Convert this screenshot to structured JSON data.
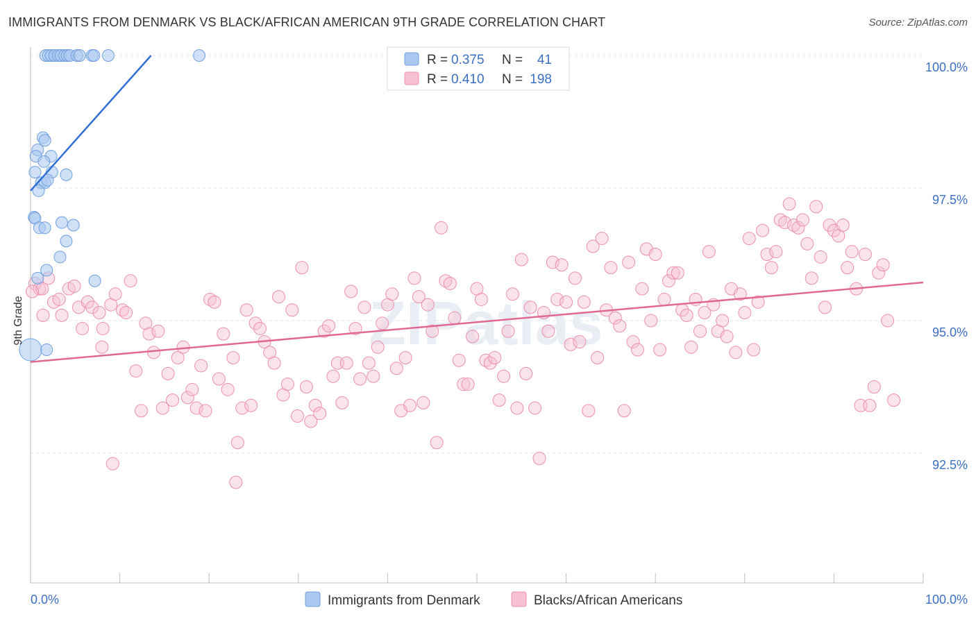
{
  "title": "IMMIGRANTS FROM DENMARK VS BLACK/AFRICAN AMERICAN 9TH GRADE CORRELATION CHART",
  "source": "Source: ZipAtlas.com",
  "watermark": "ZIPatlas",
  "colors": {
    "series1_fill": "#aac8f0",
    "series1_stroke": "#6f9fe0",
    "series1_line": "#2f6fd6",
    "series2_fill": "#f7c1d2",
    "series2_stroke": "#ec8fae",
    "series2_line": "#e0698f",
    "tick_label": "#3b6fc4",
    "grid": "#e6e6e6"
  },
  "legend": {
    "r_label": "R =",
    "n_label": "N =",
    "rows": [
      {
        "r": "0.375",
        "n": "41"
      },
      {
        "r": "0.410",
        "n": "198"
      }
    ]
  },
  "chart_data": {
    "type": "scatter",
    "title": "IMMIGRANTS FROM DENMARK VS BLACK/AFRICAN AMERICAN 9TH GRADE CORRELATION CHART",
    "xlabel": "",
    "ylabel": "9th Grade",
    "xlim": [
      0,
      100
    ],
    "ylim": [
      90.0,
      100.2
    ],
    "x_tick_labels": [
      "0.0%",
      "100.0%"
    ],
    "y_ticks": [
      92.5,
      95.0,
      97.5,
      100.0
    ],
    "y_tick_labels": [
      "92.5%",
      "95.0%",
      "97.5%",
      "100.0%"
    ],
    "grid": true,
    "legend_position": "top-center",
    "series": [
      {
        "name": "Immigrants from Denmark",
        "r": 0.375,
        "n": 41,
        "trend": {
          "x": [
            0.0,
            13.5
          ],
          "y": [
            97.45,
            100.0
          ]
        },
        "points": [
          [
            1.7,
            100.0
          ],
          [
            2.0,
            100.0
          ],
          [
            2.3,
            100.0
          ],
          [
            2.7,
            100.0
          ],
          [
            3.1,
            100.0
          ],
          [
            3.4,
            100.0
          ],
          [
            3.8,
            100.0
          ],
          [
            4.1,
            100.0
          ],
          [
            4.4,
            100.0
          ],
          [
            5.2,
            100.0
          ],
          [
            5.5,
            100.0
          ],
          [
            6.9,
            100.0
          ],
          [
            7.1,
            100.0
          ],
          [
            8.7,
            100.0
          ],
          [
            18.9,
            100.0
          ],
          [
            1.4,
            98.45
          ],
          [
            1.6,
            98.4
          ],
          [
            0.8,
            98.22
          ],
          [
            0.6,
            98.1
          ],
          [
            2.3,
            98.1
          ],
          [
            1.5,
            98.0
          ],
          [
            0.5,
            97.8
          ],
          [
            2.4,
            97.8
          ],
          [
            4.0,
            97.75
          ],
          [
            1.2,
            97.6
          ],
          [
            1.6,
            97.6
          ],
          [
            1.9,
            97.65
          ],
          [
            0.9,
            97.45
          ],
          [
            0.4,
            96.95
          ],
          [
            0.5,
            96.93
          ],
          [
            3.5,
            96.85
          ],
          [
            4.8,
            96.8
          ],
          [
            1.0,
            96.75
          ],
          [
            1.6,
            96.75
          ],
          [
            4.0,
            96.5
          ],
          [
            3.3,
            96.2
          ],
          [
            1.8,
            95.95
          ],
          [
            0.8,
            95.8
          ],
          [
            7.2,
            95.75
          ],
          [
            0.0,
            94.45
          ],
          [
            1.8,
            94.45
          ]
        ]
      },
      {
        "name": "Blacks/African Americans",
        "r": 0.41,
        "n": 198,
        "trend": {
          "x": [
            0.0,
            100.0
          ],
          "y": [
            94.22,
            95.72
          ]
        },
        "points": [
          [
            0.5,
            95.7
          ],
          [
            1.0,
            95.6
          ],
          [
            1.3,
            95.6
          ],
          [
            2.0,
            95.8
          ],
          [
            2.6,
            95.35
          ],
          [
            3.2,
            95.4
          ],
          [
            3.5,
            95.1
          ],
          [
            4.3,
            95.6
          ],
          [
            4.9,
            95.65
          ],
          [
            5.4,
            95.25
          ],
          [
            5.8,
            94.85
          ],
          [
            6.4,
            95.35
          ],
          [
            6.9,
            95.25
          ],
          [
            7.7,
            95.15
          ],
          [
            8.1,
            94.85
          ],
          [
            9.0,
            95.3
          ],
          [
            8.0,
            94.5
          ],
          [
            9.5,
            95.5
          ],
          [
            10.3,
            95.2
          ],
          [
            10.7,
            95.15
          ],
          [
            11.2,
            95.75
          ],
          [
            11.8,
            94.05
          ],
          [
            12.4,
            93.3
          ],
          [
            12.9,
            94.95
          ],
          [
            13.3,
            94.75
          ],
          [
            13.8,
            94.4
          ],
          [
            14.3,
            94.8
          ],
          [
            14.8,
            93.35
          ],
          [
            15.4,
            94.0
          ],
          [
            15.9,
            93.5
          ],
          [
            16.5,
            94.3
          ],
          [
            17.1,
            94.5
          ],
          [
            17.6,
            93.55
          ],
          [
            18.1,
            93.7
          ],
          [
            18.6,
            93.35
          ],
          [
            19.1,
            94.15
          ],
          [
            19.6,
            93.3
          ],
          [
            20.1,
            95.4
          ],
          [
            20.6,
            95.35
          ],
          [
            21.1,
            93.9
          ],
          [
            21.6,
            94.75
          ],
          [
            22.1,
            93.7
          ],
          [
            22.7,
            94.3
          ],
          [
            23.2,
            92.7
          ],
          [
            23.7,
            93.35
          ],
          [
            24.2,
            95.2
          ],
          [
            24.7,
            93.4
          ],
          [
            25.2,
            94.95
          ],
          [
            25.7,
            94.85
          ],
          [
            26.2,
            94.6
          ],
          [
            26.8,
            94.4
          ],
          [
            27.3,
            94.2
          ],
          [
            27.8,
            95.45
          ],
          [
            28.3,
            93.6
          ],
          [
            28.8,
            93.8
          ],
          [
            29.3,
            95.2
          ],
          [
            29.9,
            93.2
          ],
          [
            30.4,
            96.0
          ],
          [
            30.9,
            93.75
          ],
          [
            31.4,
            93.1
          ],
          [
            31.9,
            93.4
          ],
          [
            32.4,
            93.25
          ],
          [
            32.9,
            94.8
          ],
          [
            33.4,
            94.9
          ],
          [
            33.9,
            93.95
          ],
          [
            34.4,
            94.2
          ],
          [
            34.9,
            93.45
          ],
          [
            35.4,
            94.2
          ],
          [
            35.9,
            95.55
          ],
          [
            36.4,
            94.85
          ],
          [
            36.9,
            93.9
          ],
          [
            37.4,
            95.25
          ],
          [
            37.9,
            94.2
          ],
          [
            38.4,
            93.95
          ],
          [
            38.9,
            94.5
          ],
          [
            39.4,
            94.95
          ],
          [
            40.0,
            95.3
          ],
          [
            40.5,
            95.5
          ],
          [
            41.0,
            94.1
          ],
          [
            41.5,
            93.3
          ],
          [
            42.0,
            94.3
          ],
          [
            42.5,
            93.4
          ],
          [
            43.0,
            95.8
          ],
          [
            43.5,
            95.45
          ],
          [
            44.0,
            93.45
          ],
          [
            44.5,
            95.3
          ],
          [
            45.0,
            94.8
          ],
          [
            45.5,
            92.7
          ],
          [
            46.0,
            96.75
          ],
          [
            46.5,
            95.75
          ],
          [
            47.0,
            95.7
          ],
          [
            47.5,
            95.05
          ],
          [
            48.0,
            94.25
          ],
          [
            48.5,
            93.8
          ],
          [
            49.0,
            93.8
          ],
          [
            49.5,
            94.7
          ],
          [
            50.0,
            95.6
          ],
          [
            50.5,
            95.4
          ],
          [
            51.0,
            94.25
          ],
          [
            51.5,
            94.2
          ],
          [
            52.0,
            94.3
          ],
          [
            52.5,
            93.5
          ],
          [
            53.0,
            93.95
          ],
          [
            53.5,
            94.8
          ],
          [
            54.0,
            95.5
          ],
          [
            54.5,
            93.35
          ],
          [
            55.0,
            96.15
          ],
          [
            55.5,
            94.0
          ],
          [
            56.0,
            95.25
          ],
          [
            56.5,
            93.35
          ],
          [
            57.0,
            92.4
          ],
          [
            57.5,
            95.15
          ],
          [
            58.0,
            94.8
          ],
          [
            58.5,
            96.1
          ],
          [
            59.0,
            95.4
          ],
          [
            59.5,
            96.05
          ],
          [
            60.0,
            95.35
          ],
          [
            60.5,
            94.55
          ],
          [
            61.0,
            95.8
          ],
          [
            61.5,
            94.6
          ],
          [
            62.0,
            95.35
          ],
          [
            62.5,
            93.3
          ],
          [
            63.0,
            96.4
          ],
          [
            63.5,
            94.3
          ],
          [
            64.0,
            96.55
          ],
          [
            64.5,
            95.2
          ],
          [
            65.0,
            96.0
          ],
          [
            65.5,
            95.05
          ],
          [
            66.0,
            94.9
          ],
          [
            66.5,
            93.3
          ],
          [
            67.0,
            96.1
          ],
          [
            67.5,
            94.6
          ],
          [
            68.0,
            94.45
          ],
          [
            68.5,
            95.6
          ],
          [
            69.0,
            96.35
          ],
          [
            69.5,
            95.0
          ],
          [
            70.0,
            96.25
          ],
          [
            70.5,
            94.45
          ],
          [
            71.0,
            95.4
          ],
          [
            71.5,
            95.75
          ],
          [
            72.0,
            95.9
          ],
          [
            72.5,
            95.9
          ],
          [
            73.0,
            95.2
          ],
          [
            73.5,
            95.1
          ],
          [
            74.0,
            94.5
          ],
          [
            74.5,
            95.4
          ],
          [
            75.0,
            94.8
          ],
          [
            75.5,
            95.15
          ],
          [
            76.0,
            96.3
          ],
          [
            76.5,
            95.3
          ],
          [
            77.0,
            94.8
          ],
          [
            77.5,
            95.0
          ],
          [
            78.0,
            94.7
          ],
          [
            78.5,
            95.6
          ],
          [
            79.0,
            94.4
          ],
          [
            79.5,
            95.5
          ],
          [
            80.0,
            95.15
          ],
          [
            80.5,
            96.55
          ],
          [
            81.0,
            94.45
          ],
          [
            81.5,
            95.35
          ],
          [
            82.0,
            96.7
          ],
          [
            82.5,
            96.25
          ],
          [
            83.0,
            96.0
          ],
          [
            83.5,
            96.3
          ],
          [
            84.0,
            96.9
          ],
          [
            84.5,
            96.85
          ],
          [
            85.0,
            97.2
          ],
          [
            85.5,
            96.8
          ],
          [
            86.0,
            96.75
          ],
          [
            86.5,
            96.9
          ],
          [
            87.0,
            96.45
          ],
          [
            87.5,
            95.8
          ],
          [
            88.0,
            97.15
          ],
          [
            88.5,
            96.2
          ],
          [
            89.0,
            95.25
          ],
          [
            89.5,
            96.8
          ],
          [
            90.0,
            96.7
          ],
          [
            90.5,
            96.6
          ],
          [
            91.0,
            96.8
          ],
          [
            91.5,
            96.0
          ],
          [
            92.0,
            96.3
          ],
          [
            92.5,
            95.6
          ],
          [
            93.0,
            93.4
          ],
          [
            93.5,
            96.25
          ],
          [
            94.0,
            93.4
          ],
          [
            94.5,
            93.75
          ],
          [
            95.0,
            95.9
          ],
          [
            95.5,
            96.05
          ],
          [
            96.0,
            95.0
          ],
          [
            0.2,
            95.55
          ],
          [
            1.4,
            95.1
          ],
          [
            9.2,
            92.3
          ],
          [
            23.0,
            91.95
          ],
          [
            96.7,
            93.5
          ]
        ]
      }
    ]
  }
}
